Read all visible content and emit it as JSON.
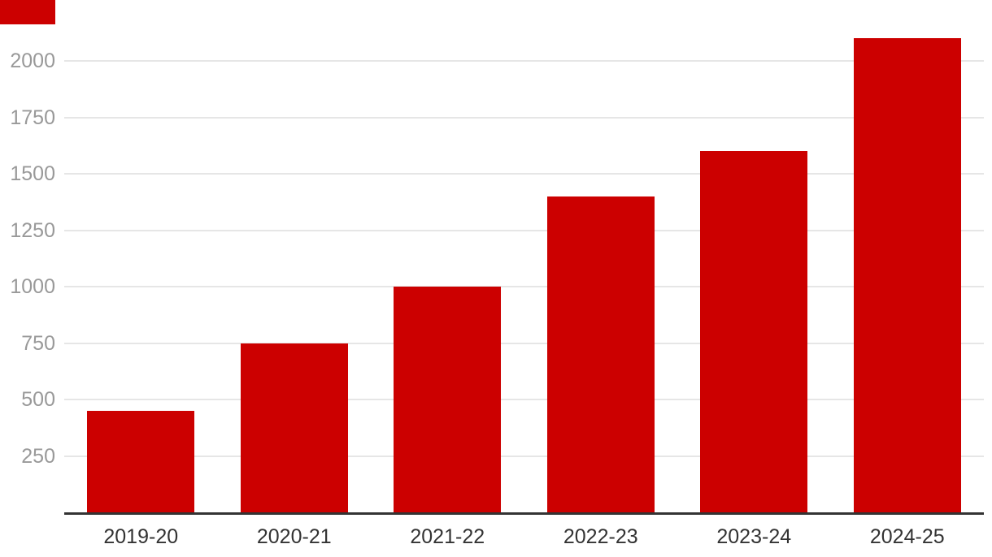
{
  "chart_data": {
    "type": "bar",
    "title": "",
    "xlabel": "",
    "ylabel": "",
    "categories": [
      "2019-20",
      "2020-21",
      "2021-22",
      "2022-23",
      "2023-24",
      "2024-25"
    ],
    "values": [
      450,
      750,
      1000,
      1400,
      1600,
      2100
    ],
    "yticks": [
      250,
      500,
      750,
      1000,
      1250,
      1500,
      1750,
      2000
    ],
    "ylim": [
      0,
      2270
    ],
    "grid": true,
    "legend": false
  },
  "colors": {
    "bar": "#cc0000",
    "accent_tab": "#cc0000",
    "gridline": "#e6e6e6",
    "baseline": "#333333",
    "y_tick_text": "#999999",
    "x_tick_text": "#333333",
    "background": "#ffffff"
  }
}
